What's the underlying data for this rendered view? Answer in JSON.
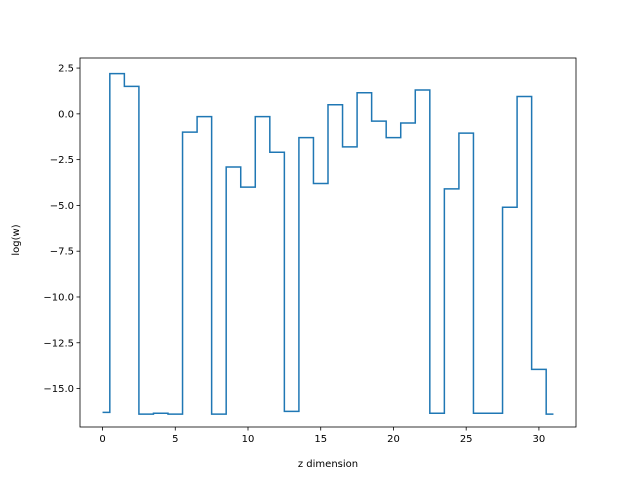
{
  "chart_data": {
    "type": "line",
    "drawstyle": "steps-mid",
    "title": "",
    "xlabel": "z dimension",
    "ylabel": "log(w)",
    "xlim": [
      -1.55,
      32.55
    ],
    "ylim": [
      -17.1,
      3.05
    ],
    "xticks": [
      0,
      5,
      10,
      15,
      20,
      25,
      30
    ],
    "xtick_labels": [
      "0",
      "5",
      "10",
      "15",
      "20",
      "25",
      "30"
    ],
    "yticks": [
      2.5,
      0.0,
      -2.5,
      -5.0,
      -7.5,
      -10.0,
      -12.5,
      -15.0
    ],
    "ytick_labels": [
      "2.5",
      "0.0",
      "−2.5",
      "−5.0",
      "−7.5",
      "−10.0",
      "−12.5",
      "−15.0"
    ],
    "grid": false,
    "legend": "none",
    "series_color": "#1f77b4",
    "series": [
      {
        "name": "",
        "x": [
          0,
          1,
          2,
          3,
          4,
          5,
          6,
          7,
          8,
          9,
          10,
          11,
          12,
          13,
          14,
          15,
          16,
          17,
          18,
          19,
          20,
          21,
          22,
          23,
          24,
          25,
          26,
          27,
          28,
          29,
          30,
          31
        ],
        "y": [
          -16.3,
          2.2,
          1.5,
          -16.4,
          -16.35,
          -16.4,
          -1.0,
          -0.15,
          -16.4,
          -2.9,
          -4.0,
          -0.15,
          -2.1,
          -16.25,
          -1.3,
          -3.8,
          0.5,
          -1.8,
          1.15,
          -0.4,
          -1.3,
          -0.5,
          1.3,
          -16.35,
          -4.1,
          -1.05,
          -16.35,
          -16.35,
          -5.1,
          0.95,
          -13.95,
          -16.4
        ]
      }
    ]
  }
}
